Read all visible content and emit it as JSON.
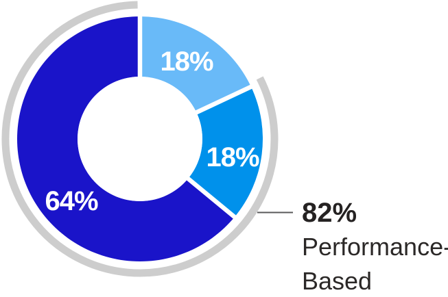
{
  "chart_data": {
    "type": "pie",
    "variant": "donut",
    "start_angle_deg": 0,
    "direction": "clockwise",
    "segments": [
      {
        "name": "light-blue-slice",
        "label": "18%",
        "value": 18,
        "color": "#69BAF8"
      },
      {
        "name": "medium-blue-slice",
        "label": "18%",
        "value": 18,
        "color": "#0091EB"
      },
      {
        "name": "dark-blue-slice",
        "label": "64%",
        "value": 64,
        "color": "#1A14C9"
      }
    ],
    "highlight_arc": {
      "covers_segments": [
        1,
        2
      ],
      "covered_total": "82%",
      "color": "#CDCDCD"
    },
    "annotation": {
      "value": "82%",
      "label_line1": "Performance-",
      "label_line2": "Based"
    },
    "legend": "none",
    "grid": false
  },
  "callout": {
    "value": "82%",
    "line1": "Performance-",
    "line2": "Based"
  },
  "colors": {
    "background": "#FFFFFF",
    "slice_divider": "#FFFFFF",
    "slice_label_text": "#FFFFFF",
    "highlight_arc": "#CDCDCD",
    "leader_line": "#58585A",
    "callout_value_text": "#252222",
    "callout_label_text": "#2B2827"
  }
}
